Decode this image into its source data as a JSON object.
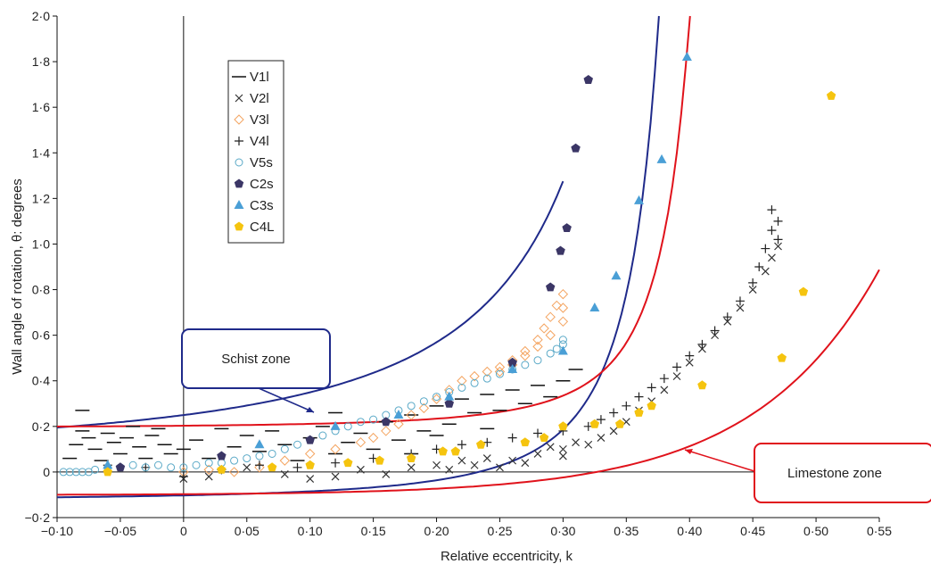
{
  "chart_data": {
    "type": "scatter",
    "xlabel": "Relative eccentricity, k",
    "ylabel": "Wall angle of rotation, θ: degrees",
    "xlim": [
      -0.1,
      0.55
    ],
    "ylim": [
      -0.2,
      2.0
    ],
    "x_ticks": [
      -0.1,
      -0.05,
      0,
      0.05,
      0.1,
      0.15,
      0.2,
      0.25,
      0.3,
      0.35,
      0.4,
      0.45,
      0.5,
      0.55
    ],
    "x_tick_labels": [
      "−0·10",
      "−0·05",
      "0",
      "0·05",
      "0·10",
      "0·15",
      "0·20",
      "0·25",
      "0·30",
      "0·35",
      "0·40",
      "0·45",
      "0·50",
      "0·55"
    ],
    "y_ticks": [
      -0.2,
      0,
      0.2,
      0.4,
      0.6,
      0.8,
      1.0,
      1.2,
      1.4,
      1.6,
      1.8,
      2.0
    ],
    "y_tick_labels": [
      "−0·2",
      "0",
      "0·2",
      "0·4",
      "0·6",
      "0·8",
      "1·0",
      "1·2",
      "1·4",
      "1·6",
      "1·8",
      "2·0"
    ],
    "grid": false,
    "legend_position": "top-left",
    "series": [
      {
        "name": "V1l",
        "marker": "dash",
        "color": "#111111",
        "points": [
          [
            -0.09,
            0.06
          ],
          [
            -0.085,
            0.12
          ],
          [
            -0.08,
            0.18
          ],
          [
            -0.075,
            0.15
          ],
          [
            -0.07,
            0.1
          ],
          [
            -0.065,
            0.05
          ],
          [
            -0.06,
            0.17
          ],
          [
            -0.055,
            0.13
          ],
          [
            -0.05,
            0.08
          ],
          [
            -0.045,
            0.15
          ],
          [
            -0.04,
            0.2
          ],
          [
            -0.035,
            0.11
          ],
          [
            -0.03,
            0.06
          ],
          [
            -0.025,
            0.16
          ],
          [
            -0.02,
            0.19
          ],
          [
            -0.015,
            0.12
          ],
          [
            -0.01,
            0.08
          ],
          [
            0.0,
            0.1
          ],
          [
            0.01,
            0.14
          ],
          [
            0.02,
            0.06
          ],
          [
            0.03,
            0.19
          ],
          [
            0.04,
            0.11
          ],
          [
            0.05,
            0.16
          ],
          [
            0.06,
            0.09
          ],
          [
            0.07,
            0.18
          ],
          [
            0.08,
            0.12
          ],
          [
            0.09,
            0.05
          ],
          [
            0.1,
            0.15
          ],
          [
            0.11,
            0.2
          ],
          [
            0.12,
            0.08
          ],
          [
            0.13,
            0.13
          ],
          [
            0.14,
            0.17
          ],
          [
            0.15,
            0.1
          ],
          [
            0.16,
            0.22
          ],
          [
            0.17,
            0.14
          ],
          [
            0.18,
            0.25
          ],
          [
            0.19,
            0.18
          ],
          [
            0.2,
            0.29
          ],
          [
            0.21,
            0.21
          ],
          [
            0.22,
            0.32
          ],
          [
            0.23,
            0.26
          ],
          [
            0.24,
            0.34
          ],
          [
            0.25,
            0.27
          ],
          [
            0.26,
            0.36
          ],
          [
            0.27,
            0.3
          ],
          [
            0.28,
            0.38
          ],
          [
            0.29,
            0.33
          ],
          [
            0.3,
            0.4
          ],
          [
            0.31,
            0.45
          ],
          [
            -0.08,
            0.27
          ],
          [
            0.12,
            0.26
          ],
          [
            0.2,
            0.16
          ],
          [
            0.24,
            0.19
          ],
          [
            0.18,
            0.08
          ]
        ]
      },
      {
        "name": "V2l",
        "marker": "x",
        "color": "#333333",
        "points": [
          [
            0.0,
            -0.03
          ],
          [
            0.02,
            -0.02
          ],
          [
            0.05,
            0.02
          ],
          [
            0.08,
            -0.01
          ],
          [
            0.1,
            -0.03
          ],
          [
            0.12,
            -0.02
          ],
          [
            0.14,
            0.01
          ],
          [
            0.16,
            -0.01
          ],
          [
            0.18,
            0.02
          ],
          [
            0.2,
            0.03
          ],
          [
            0.22,
            0.05
          ],
          [
            0.24,
            0.06
          ],
          [
            0.26,
            0.05
          ],
          [
            0.28,
            0.08
          ],
          [
            0.29,
            0.11
          ],
          [
            0.3,
            0.1
          ],
          [
            0.31,
            0.13
          ],
          [
            0.32,
            0.12
          ],
          [
            0.33,
            0.15
          ],
          [
            0.34,
            0.18
          ],
          [
            0.35,
            0.22
          ],
          [
            0.36,
            0.27
          ],
          [
            0.37,
            0.31
          ],
          [
            0.38,
            0.36
          ],
          [
            0.39,
            0.42
          ],
          [
            0.4,
            0.48
          ],
          [
            0.41,
            0.54
          ],
          [
            0.42,
            0.6
          ],
          [
            0.43,
            0.66
          ],
          [
            0.44,
            0.72
          ],
          [
            0.45,
            0.8
          ],
          [
            0.46,
            0.88
          ],
          [
            0.465,
            0.94
          ],
          [
            0.47,
            0.99
          ],
          [
            0.3,
            0.07
          ],
          [
            0.27,
            0.04
          ],
          [
            0.25,
            0.02
          ],
          [
            0.23,
            0.03
          ],
          [
            0.21,
            0.01
          ]
        ]
      },
      {
        "name": "V3l",
        "marker": "diamond",
        "color": "#f4a460",
        "points": [
          [
            0.0,
            0.0
          ],
          [
            0.02,
            0.01
          ],
          [
            0.04,
            0.0
          ],
          [
            0.06,
            0.02
          ],
          [
            0.08,
            0.05
          ],
          [
            0.1,
            0.08
          ],
          [
            0.12,
            0.1
          ],
          [
            0.14,
            0.13
          ],
          [
            0.15,
            0.15
          ],
          [
            0.16,
            0.18
          ],
          [
            0.17,
            0.21
          ],
          [
            0.18,
            0.25
          ],
          [
            0.19,
            0.28
          ],
          [
            0.2,
            0.32
          ],
          [
            0.21,
            0.36
          ],
          [
            0.22,
            0.4
          ],
          [
            0.23,
            0.42
          ],
          [
            0.24,
            0.44
          ],
          [
            0.25,
            0.46
          ],
          [
            0.26,
            0.49
          ],
          [
            0.27,
            0.53
          ],
          [
            0.28,
            0.58
          ],
          [
            0.285,
            0.63
          ],
          [
            0.29,
            0.68
          ],
          [
            0.295,
            0.73
          ],
          [
            0.3,
            0.78
          ],
          [
            0.3,
            0.72
          ],
          [
            0.3,
            0.66
          ],
          [
            0.29,
            0.6
          ],
          [
            0.28,
            0.55
          ],
          [
            0.27,
            0.51
          ],
          [
            0.26,
            0.47
          ],
          [
            0.25,
            0.44
          ]
        ]
      },
      {
        "name": "V4l",
        "marker": "plus",
        "color": "#222222",
        "points": [
          [
            -0.06,
            0.03
          ],
          [
            -0.03,
            0.02
          ],
          [
            0.0,
            -0.02
          ],
          [
            0.03,
            0.01
          ],
          [
            0.06,
            0.03
          ],
          [
            0.09,
            0.02
          ],
          [
            0.12,
            0.04
          ],
          [
            0.15,
            0.06
          ],
          [
            0.18,
            0.08
          ],
          [
            0.2,
            0.1
          ],
          [
            0.22,
            0.12
          ],
          [
            0.24,
            0.13
          ],
          [
            0.26,
            0.15
          ],
          [
            0.28,
            0.17
          ],
          [
            0.3,
            0.18
          ],
          [
            0.32,
            0.2
          ],
          [
            0.33,
            0.23
          ],
          [
            0.34,
            0.26
          ],
          [
            0.35,
            0.29
          ],
          [
            0.36,
            0.33
          ],
          [
            0.37,
            0.37
          ],
          [
            0.38,
            0.41
          ],
          [
            0.39,
            0.46
          ],
          [
            0.4,
            0.51
          ],
          [
            0.41,
            0.56
          ],
          [
            0.42,
            0.62
          ],
          [
            0.43,
            0.68
          ],
          [
            0.44,
            0.75
          ],
          [
            0.45,
            0.83
          ],
          [
            0.455,
            0.9
          ],
          [
            0.46,
            0.98
          ],
          [
            0.465,
            1.06
          ],
          [
            0.465,
            1.15
          ],
          [
            0.47,
            1.1
          ],
          [
            0.47,
            1.02
          ]
        ]
      },
      {
        "name": "V5s",
        "marker": "circle",
        "color": "#5aa9c7",
        "points": [
          [
            -0.095,
            0.0
          ],
          [
            -0.09,
            0.0
          ],
          [
            -0.085,
            0.0
          ],
          [
            -0.08,
            0.0
          ],
          [
            -0.075,
            0.0
          ],
          [
            -0.07,
            0.01
          ],
          [
            -0.06,
            0.02
          ],
          [
            -0.05,
            0.02
          ],
          [
            -0.04,
            0.03
          ],
          [
            -0.03,
            0.02
          ],
          [
            -0.02,
            0.03
          ],
          [
            -0.01,
            0.02
          ],
          [
            0.0,
            0.02
          ],
          [
            0.01,
            0.03
          ],
          [
            0.02,
            0.04
          ],
          [
            0.03,
            0.04
          ],
          [
            0.04,
            0.05
          ],
          [
            0.05,
            0.06
          ],
          [
            0.06,
            0.07
          ],
          [
            0.07,
            0.08
          ],
          [
            0.08,
            0.1
          ],
          [
            0.09,
            0.12
          ],
          [
            0.1,
            0.14
          ],
          [
            0.11,
            0.16
          ],
          [
            0.12,
            0.18
          ],
          [
            0.13,
            0.2
          ],
          [
            0.14,
            0.22
          ],
          [
            0.15,
            0.23
          ],
          [
            0.16,
            0.25
          ],
          [
            0.17,
            0.27
          ],
          [
            0.18,
            0.29
          ],
          [
            0.19,
            0.31
          ],
          [
            0.2,
            0.33
          ],
          [
            0.21,
            0.35
          ],
          [
            0.22,
            0.37
          ],
          [
            0.23,
            0.39
          ],
          [
            0.24,
            0.41
          ],
          [
            0.25,
            0.43
          ],
          [
            0.26,
            0.45
          ],
          [
            0.27,
            0.47
          ],
          [
            0.28,
            0.49
          ],
          [
            0.29,
            0.52
          ],
          [
            0.295,
            0.54
          ],
          [
            0.3,
            0.56
          ],
          [
            0.3,
            0.58
          ]
        ]
      },
      {
        "name": "C2s",
        "marker": "pentagon",
        "color": "#3b3666",
        "points": [
          [
            -0.05,
            0.02
          ],
          [
            0.03,
            0.07
          ],
          [
            0.1,
            0.14
          ],
          [
            0.16,
            0.22
          ],
          [
            0.21,
            0.3
          ],
          [
            0.26,
            0.48
          ],
          [
            0.29,
            0.81
          ],
          [
            0.298,
            0.97
          ],
          [
            0.303,
            1.07
          ],
          [
            0.31,
            1.42
          ],
          [
            0.32,
            1.72
          ]
        ]
      },
      {
        "name": "C3s",
        "marker": "triangle",
        "color": "#4a9fd6",
        "points": [
          [
            -0.06,
            0.03
          ],
          [
            0.06,
            0.12
          ],
          [
            0.12,
            0.2
          ],
          [
            0.17,
            0.25
          ],
          [
            0.21,
            0.33
          ],
          [
            0.26,
            0.45
          ],
          [
            0.3,
            0.53
          ],
          [
            0.325,
            0.72
          ],
          [
            0.342,
            0.86
          ],
          [
            0.36,
            1.19
          ],
          [
            0.378,
            1.37
          ],
          [
            0.398,
            1.82
          ]
        ]
      },
      {
        "name": "C4L",
        "marker": "pentagon",
        "color": "#f5c40f",
        "points": [
          [
            -0.06,
            0.0
          ],
          [
            0.03,
            0.01
          ],
          [
            0.07,
            0.02
          ],
          [
            0.1,
            0.03
          ],
          [
            0.13,
            0.04
          ],
          [
            0.155,
            0.05
          ],
          [
            0.18,
            0.06
          ],
          [
            0.205,
            0.09
          ],
          [
            0.215,
            0.09
          ],
          [
            0.235,
            0.12
          ],
          [
            0.27,
            0.13
          ],
          [
            0.285,
            0.15
          ],
          [
            0.3,
            0.2
          ],
          [
            0.325,
            0.21
          ],
          [
            0.345,
            0.21
          ],
          [
            0.36,
            0.26
          ],
          [
            0.37,
            0.29
          ],
          [
            0.41,
            0.38
          ],
          [
            0.473,
            0.5
          ],
          [
            0.49,
            0.79
          ],
          [
            0.512,
            1.65
          ]
        ]
      }
    ],
    "zone_curves": [
      {
        "zone": "Schist zone",
        "color": "#1f2a8a"
      },
      {
        "zone": "Limestone zone",
        "color": "#e0121b"
      }
    ],
    "annotations": [
      "Schist zone",
      "Limestone zone"
    ]
  },
  "colors": {
    "axis": "#111111",
    "schist_boundary": "#1f2a8a",
    "limestone_boundary": "#e0121b"
  }
}
